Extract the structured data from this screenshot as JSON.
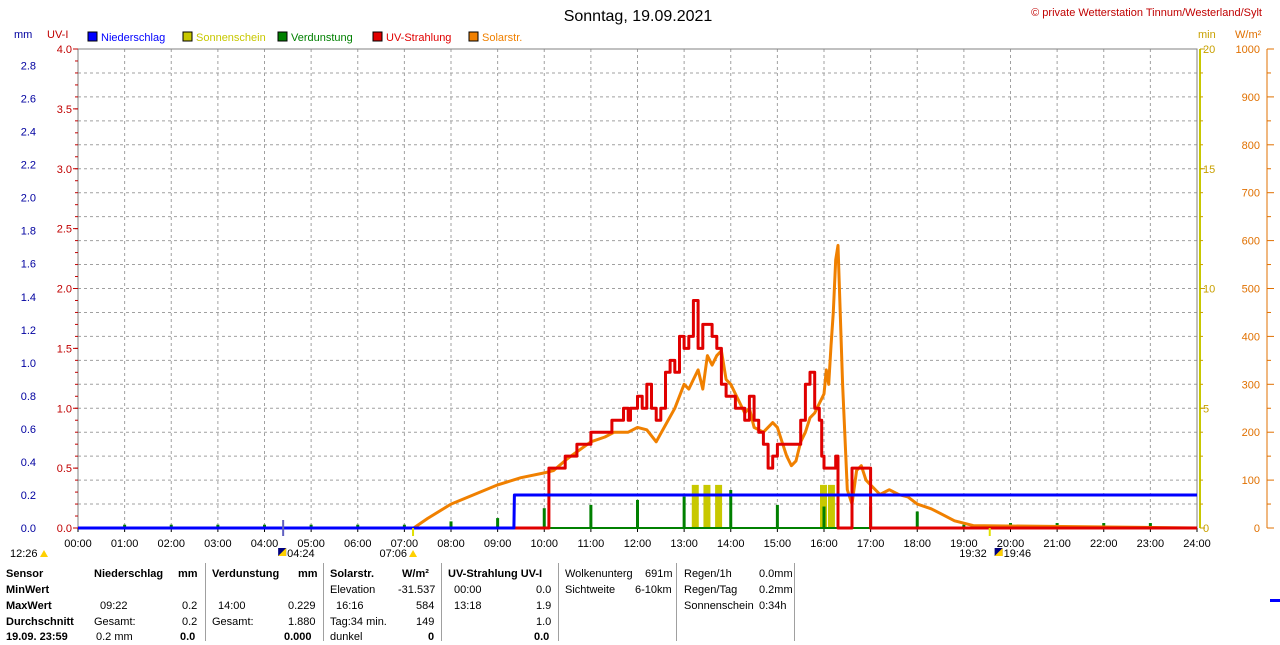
{
  "title": "Sonntag, 19.09.2021",
  "copyright": "© private Wetterstation Tinnum/Westerland/Sylt",
  "axis_labels": {
    "mm": "mm",
    "uvi": "UV-I",
    "min": "min",
    "wm2": "W/m²"
  },
  "colors": {
    "precip": "#0000ff",
    "sun": "#c8c800",
    "evap": "#008000",
    "uv": "#e00000",
    "solar": "#f08000",
    "grid": "#a0a0a0",
    "uv_axis": "#c00000",
    "mm_axis": "#0000a0",
    "min_axis": "#c8a000",
    "wm2_axis": "#e07000"
  },
  "legend": [
    {
      "label": "Niederschlag",
      "color": "#0000ff"
    },
    {
      "label": "Sonnenschein",
      "color": "#c8c800"
    },
    {
      "label": "Verdunstung",
      "color": "#008000"
    },
    {
      "label": "UV-Strahlung",
      "color": "#e00000"
    },
    {
      "label": "Solarstr.",
      "color": "#f08000"
    }
  ],
  "markers": {
    "moonrise": "12:26",
    "sunrise": "04:24",
    "civil_dawn": "07:06",
    "civil_dusk": "19:32",
    "sunset": "19:46"
  },
  "chart_data": {
    "type": "line",
    "x_ticks": [
      "00:00",
      "01:00",
      "02:00",
      "03:00",
      "04:00",
      "05:00",
      "06:00",
      "07:00",
      "08:00",
      "09:00",
      "10:00",
      "11:00",
      "12:00",
      "13:00",
      "14:00",
      "15:00",
      "16:00",
      "17:00",
      "18:00",
      "19:00",
      "20:00",
      "21:00",
      "22:00",
      "23:00",
      "24:00"
    ],
    "xlim": [
      0,
      24
    ],
    "axes": {
      "mm": {
        "lim": [
          0,
          2.9
        ],
        "ticks": [
          "0.0",
          "0.2",
          "0.4",
          "0.6",
          "0.8",
          "1.0",
          "1.2",
          "1.4",
          "1.6",
          "1.8",
          "2.0",
          "2.2",
          "2.4",
          "2.6",
          "2.8"
        ]
      },
      "uvi": {
        "lim": [
          0,
          4.0
        ],
        "ticks": [
          "0.0",
          "0.5",
          "1.0",
          "1.5",
          "2.0",
          "2.5",
          "3.0",
          "3.5",
          "4.0"
        ]
      },
      "min": {
        "lim": [
          0,
          20
        ],
        "ticks": [
          "0",
          "5",
          "10",
          "15",
          "20"
        ]
      },
      "wm2": {
        "lim": [
          0,
          1000
        ],
        "ticks": [
          "0",
          "100",
          "200",
          "300",
          "400",
          "500",
          "600",
          "700",
          "800",
          "900",
          "1000"
        ]
      }
    },
    "series": [
      {
        "name": "Niederschlag",
        "axis": "mm",
        "x": [
          0,
          9.35,
          9.36,
          24
        ],
        "y": [
          0,
          0,
          0.2,
          0.2
        ]
      },
      {
        "name": "UV-Strahlung",
        "axis": "uvi",
        "x": [
          0,
          10.05,
          10.1,
          10.4,
          10.45,
          10.65,
          10.7,
          10.95,
          11.0,
          11.4,
          11.45,
          11.6,
          11.7,
          11.8,
          11.85,
          12.0,
          12.1,
          12.2,
          12.3,
          12.4,
          12.5,
          12.6,
          12.7,
          12.8,
          12.9,
          13.0,
          13.1,
          13.2,
          13.3,
          13.4,
          13.5,
          13.6,
          13.7,
          13.8,
          13.9,
          14.0,
          14.1,
          14.2,
          14.3,
          14.4,
          14.5,
          14.6,
          14.7,
          14.8,
          14.9,
          15.0,
          15.1,
          15.2,
          15.3,
          15.4,
          15.5,
          15.6,
          15.7,
          15.8,
          15.9,
          15.95,
          16.0,
          16.05,
          16.1,
          16.15,
          16.2,
          16.25,
          16.3,
          16.5,
          16.6,
          16.65,
          16.7,
          16.9,
          17.0,
          24
        ],
        "y": [
          0,
          0,
          0.5,
          0.5,
          0.6,
          0.6,
          0.7,
          0.7,
          0.8,
          0.8,
          0.9,
          0.9,
          1.0,
          0.9,
          1.0,
          1.1,
          1.0,
          1.2,
          1.0,
          0.9,
          1.0,
          1.3,
          1.4,
          1.3,
          1.6,
          1.5,
          1.6,
          1.9,
          1.5,
          1.7,
          1.7,
          1.6,
          1.5,
          1.2,
          1.1,
          1.1,
          1.0,
          1.0,
          0.9,
          1.1,
          0.9,
          0.8,
          0.7,
          0.5,
          0.6,
          0.7,
          0.7,
          0.7,
          0.7,
          0.7,
          0.9,
          1.2,
          1.3,
          1.0,
          0.9,
          0.6,
          0.5,
          0.5,
          0.5,
          0.5,
          0.5,
          0.6,
          0.0,
          0.0,
          0.5,
          0.5,
          0.5,
          0.5,
          0.0,
          0
        ]
      },
      {
        "name": "Solarstr.",
        "axis": "wm2",
        "x": [
          0,
          7.2,
          7.5,
          8.0,
          8.5,
          9.0,
          9.5,
          10.0,
          10.2,
          10.5,
          11.0,
          11.3,
          11.5,
          11.8,
          12.0,
          12.2,
          12.4,
          12.6,
          12.8,
          13.0,
          13.1,
          13.2,
          13.3,
          13.4,
          13.5,
          13.6,
          13.7,
          13.8,
          13.9,
          14.0,
          14.1,
          14.2,
          14.3,
          14.4,
          14.5,
          14.7,
          14.9,
          15.0,
          15.1,
          15.2,
          15.3,
          15.4,
          15.5,
          15.6,
          15.7,
          15.8,
          15.9,
          15.95,
          16.0,
          16.05,
          16.1,
          16.15,
          16.2,
          16.25,
          16.3,
          16.4,
          16.5,
          16.6,
          16.7,
          16.8,
          16.9,
          17.0,
          17.2,
          17.4,
          17.6,
          17.8,
          18.0,
          18.3,
          18.5,
          18.8,
          19.0,
          19.2,
          24
        ],
        "y": [
          0,
          0,
          20,
          50,
          70,
          90,
          105,
          115,
          120,
          145,
          180,
          190,
          200,
          200,
          210,
          205,
          180,
          215,
          250,
          300,
          290,
          310,
          330,
          290,
          360,
          340,
          360,
          370,
          310,
          300,
          280,
          260,
          240,
          250,
          210,
          200,
          220,
          210,
          180,
          150,
          130,
          140,
          180,
          200,
          230,
          240,
          260,
          270,
          280,
          330,
          300,
          380,
          450,
          560,
          590,
          300,
          80,
          50,
          120,
          130,
          100,
          90,
          70,
          80,
          70,
          65,
          50,
          40,
          30,
          15,
          10,
          5,
          0
        ]
      },
      {
        "name": "Verdunstung",
        "axis": "mm",
        "x": [
          0,
          24
        ],
        "y": [
          0,
          0
        ]
      }
    ],
    "verdunstung_spikes": [
      {
        "x": 1.0,
        "y": 0.02
      },
      {
        "x": 2.0,
        "y": 0.02
      },
      {
        "x": 3.0,
        "y": 0.02
      },
      {
        "x": 4.0,
        "y": 0.02
      },
      {
        "x": 5.0,
        "y": 0.02
      },
      {
        "x": 6.0,
        "y": 0.02
      },
      {
        "x": 7.0,
        "y": 0.02
      },
      {
        "x": 8.0,
        "y": 0.04
      },
      {
        "x": 9.0,
        "y": 0.06
      },
      {
        "x": 10.0,
        "y": 0.12
      },
      {
        "x": 11.0,
        "y": 0.14
      },
      {
        "x": 12.0,
        "y": 0.17
      },
      {
        "x": 13.0,
        "y": 0.19
      },
      {
        "x": 14.0,
        "y": 0.23
      },
      {
        "x": 15.0,
        "y": 0.14
      },
      {
        "x": 16.0,
        "y": 0.13
      },
      {
        "x": 17.0,
        "y": 0.13
      },
      {
        "x": 18.0,
        "y": 0.1
      },
      {
        "x": 19.0,
        "y": 0.02
      },
      {
        "x": 20.0,
        "y": 0.03
      },
      {
        "x": 21.0,
        "y": 0.03
      },
      {
        "x": 22.0,
        "y": 0.03
      },
      {
        "x": 23.0,
        "y": 0.03
      }
    ],
    "sonnenschein_bars": [
      {
        "x": 13.25,
        "min": 1.8
      },
      {
        "x": 13.5,
        "min": 1.8
      },
      {
        "x": 13.75,
        "min": 1.8
      },
      {
        "x": 16.0,
        "min": 1.8
      },
      {
        "x": 16.17,
        "min": 1.8
      }
    ]
  },
  "stats": {
    "sensor_col": {
      "head": "Sensor",
      "rows": [
        "MinWert",
        "MaxWert",
        "Durchschnitt"
      ],
      "last": "19.09. 23:59"
    },
    "niederschlag": {
      "head": "Niederschlag",
      "unit": "mm",
      "rows": [
        [
          "",
          ""
        ],
        [
          "09:22",
          "0.2"
        ],
        [
          "Gesamt:",
          "0.2"
        ]
      ],
      "last": [
        "0.2 mm",
        "0.0"
      ]
    },
    "verdunstung": {
      "head": "Verdunstung",
      "unit": "mm",
      "rows": [
        [
          "",
          ""
        ],
        [
          "14:00",
          "0.229"
        ],
        [
          "Gesamt:",
          "1.880"
        ]
      ],
      "last": [
        "",
        "0.000"
      ]
    },
    "solar": {
      "head": "Solarstr.",
      "unit": "W/m²",
      "rows": [
        [
          "Elevation",
          "-31.537"
        ],
        [
          "16:16",
          "584"
        ],
        [
          "Tag:34 min.",
          "149"
        ]
      ],
      "last": [
        "dunkel",
        "0"
      ]
    },
    "uv": {
      "head": "UV-Strahlung UV-I",
      "rows": [
        [
          "00:00",
          "0.0"
        ],
        [
          "13:18",
          "1.9"
        ],
        [
          "",
          "1.0"
        ]
      ],
      "last": [
        "",
        "0.0"
      ]
    },
    "sicht": {
      "rows": [
        [
          "Wolkenunterg",
          "691m"
        ],
        [
          "Sichtweite",
          "6-10km"
        ]
      ]
    },
    "regen": {
      "rows": [
        [
          "Regen/1h",
          "0.0mm"
        ],
        [
          "Regen/Tag",
          "0.2mm"
        ],
        [
          "Sonnenschein",
          "0:34h"
        ]
      ]
    }
  }
}
